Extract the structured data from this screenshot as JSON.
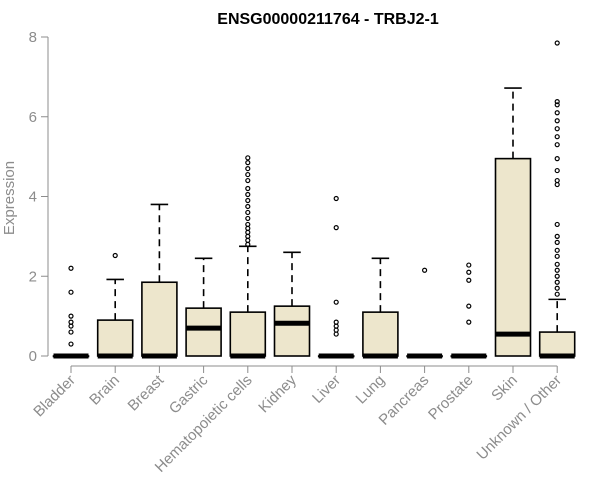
{
  "chart_data": {
    "type": "boxplot",
    "title": "ENSG00000211764 - TRBJ2-1",
    "xlabel": "",
    "ylabel": "Expression",
    "ylim": [
      0,
      8
    ],
    "yticks": [
      0,
      2,
      4,
      6,
      8
    ],
    "box_color": "#ede6cc",
    "categories": [
      "Bladder",
      "Brain",
      "Breast",
      "Gastric",
      "Hematopoietic cells",
      "Kidney",
      "Liver",
      "Lung",
      "Pancreas",
      "Prostate",
      "Skin",
      "Unknown / Other"
    ],
    "boxes": [
      {
        "q1": 0,
        "median": 0,
        "q3": 0,
        "whisker_low": 0,
        "whisker_high": 0,
        "outliers": [
          0.3,
          0.6,
          0.75,
          0.85,
          1.0,
          1.6,
          2.2
        ]
      },
      {
        "q1": 0,
        "median": 0,
        "q3": 0.9,
        "whisker_low": 0,
        "whisker_high": 1.92,
        "outliers": [
          2.52
        ]
      },
      {
        "q1": 0,
        "median": 0,
        "q3": 1.85,
        "whisker_low": 0,
        "whisker_high": 3.8,
        "outliers": []
      },
      {
        "q1": 0,
        "median": 0.7,
        "q3": 1.2,
        "whisker_low": 0,
        "whisker_high": 2.45,
        "outliers": []
      },
      {
        "q1": 0,
        "median": 0,
        "q3": 1.1,
        "whisker_low": 0,
        "whisker_high": 2.75,
        "outliers": [
          2.8,
          2.9,
          3.0,
          3.1,
          3.2,
          3.3,
          3.45,
          3.6,
          3.75,
          3.9,
          4.05,
          4.2,
          4.4,
          4.55,
          4.7,
          4.85,
          4.97
        ]
      },
      {
        "q1": 0,
        "median": 0.82,
        "q3": 1.25,
        "whisker_low": 0,
        "whisker_high": 2.6,
        "outliers": []
      },
      {
        "q1": 0,
        "median": 0,
        "q3": 0,
        "whisker_low": 0,
        "whisker_high": 0,
        "outliers": [
          0.55,
          0.65,
          0.75,
          0.85,
          1.35,
          3.22,
          3.95
        ]
      },
      {
        "q1": 0,
        "median": 0,
        "q3": 1.1,
        "whisker_low": 0,
        "whisker_high": 2.45,
        "outliers": []
      },
      {
        "q1": 0,
        "median": 0,
        "q3": 0,
        "whisker_low": 0,
        "whisker_high": 0,
        "outliers": [
          2.15
        ]
      },
      {
        "q1": 0,
        "median": 0,
        "q3": 0,
        "whisker_low": 0,
        "whisker_high": 0,
        "outliers": [
          0.85,
          1.25,
          1.9,
          2.1,
          2.28
        ]
      },
      {
        "q1": 0,
        "median": 0.55,
        "q3": 4.95,
        "whisker_low": 0,
        "whisker_high": 6.72,
        "outliers": []
      },
      {
        "q1": 0,
        "median": 0,
        "q3": 0.6,
        "whisker_low": 0,
        "whisker_high": 1.42,
        "outliers": [
          1.55,
          1.7,
          1.85,
          2.0,
          2.15,
          2.3,
          2.5,
          2.65,
          2.85,
          3.0,
          3.3,
          4.3,
          4.4,
          4.65,
          4.95,
          5.3,
          5.5,
          5.7,
          5.9,
          6.1,
          6.3,
          6.38,
          7.85
        ]
      }
    ]
  }
}
